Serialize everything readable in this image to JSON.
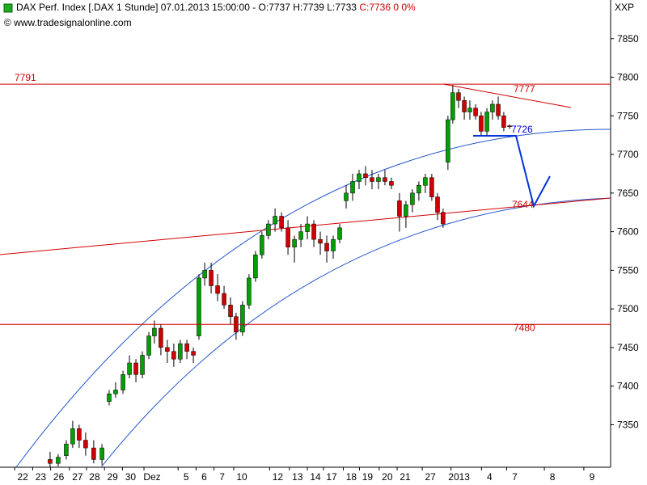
{
  "chart_data": {
    "type": "candlestick",
    "title": "DAX Perf. Index [.DAX  1 Stunde] 07.01.2013 15:00:00 - O:7737 H:7739 L:7733",
    "title_close": "C:7736 0 0%",
    "source": "© www.tradesignalonline.com",
    "corner_label": "XXP",
    "up_color": "#00a000",
    "down_color": "#d00000",
    "ylim": [
      7295,
      7900
    ],
    "yticks": [
      7350,
      7400,
      7450,
      7500,
      7550,
      7600,
      7650,
      7700,
      7750,
      7800,
      7850
    ],
    "xlim": [
      -0.27,
      33.74
    ],
    "xticks": [
      {
        "value": 1.0,
        "label": "22"
      },
      {
        "value": 2.0,
        "label": "23"
      },
      {
        "value": 3.0,
        "label": "26"
      },
      {
        "value": 4.05,
        "label": "27"
      },
      {
        "value": 5.0,
        "label": "28"
      },
      {
        "value": 6.0,
        "label": "29"
      },
      {
        "value": 7.0,
        "label": "30"
      },
      {
        "value": 8.2,
        "label": "Dez"
      },
      {
        "value": 10.1,
        "label": "5"
      },
      {
        "value": 11.1,
        "label": "6"
      },
      {
        "value": 12.1,
        "label": "7"
      },
      {
        "value": 13.2,
        "label": "10"
      },
      {
        "value": 15.2,
        "label": "12"
      },
      {
        "value": 16.3,
        "label": "13"
      },
      {
        "value": 17.3,
        "label": "14"
      },
      {
        "value": 18.2,
        "label": "17"
      },
      {
        "value": 19.3,
        "label": "18"
      },
      {
        "value": 20.2,
        "label": "19"
      },
      {
        "value": 21.3,
        "label": "20"
      },
      {
        "value": 22.3,
        "label": "21"
      },
      {
        "value": 23.7,
        "label": "27"
      },
      {
        "value": 25.3,
        "label": "2013"
      },
      {
        "value": 27.0,
        "label": "4"
      },
      {
        "value": 28.4,
        "label": "7"
      },
      {
        "value": 30.5,
        "label": "8"
      },
      {
        "value": 32.7,
        "label": "9"
      }
    ],
    "x": [
      2.52,
      2.97,
      3.42,
      3.78,
      4.14,
      4.5,
      4.95,
      5.41,
      5.81,
      6.17,
      6.58,
      6.94,
      7.3,
      7.66,
      8.02,
      8.33,
      8.69,
      9.05,
      9.41,
      9.77,
      10.14,
      10.5,
      10.81,
      11.13,
      11.49,
      11.85,
      12.21,
      12.57,
      12.88,
      13.24,
      13.6,
      13.96,
      14.32,
      14.68,
      15.05,
      15.41,
      15.77,
      16.13,
      16.49,
      16.85,
      17.21,
      17.57,
      17.93,
      18.29,
      18.65,
      19.01,
      19.37,
      19.73,
      20.09,
      20.45,
      20.81,
      21.17,
      21.53,
      21.98,
      22.34,
      22.7,
      23.06,
      23.42,
      23.78,
      24.1,
      24.41,
      24.68,
      24.95,
      25.27,
      25.59,
      25.9,
      26.22,
      26.53,
      26.85,
      27.16,
      27.48,
      27.79,
      28.11
    ],
    "open": [
      7305,
      7300,
      7310,
      7325,
      7345,
      7330,
      7320,
      7305,
      7380,
      7390,
      7395,
      7415,
      7430,
      7415,
      7440,
      7465,
      7475,
      7450,
      7445,
      7435,
      7455,
      7445,
      7465,
      7540,
      7550,
      7530,
      7520,
      7505,
      7490,
      7470,
      7505,
      7540,
      7570,
      7595,
      7610,
      7620,
      7605,
      7580,
      7590,
      7600,
      7610,
      7590,
      7585,
      7575,
      7590,
      7640,
      7650,
      7665,
      7675,
      7670,
      7665,
      7670,
      7665,
      7640,
      7620,
      7635,
      7650,
      7660,
      7670,
      7645,
      7625,
      7690,
      7745,
      7780,
      7770,
      7755,
      7760,
      7750,
      7730,
      7755,
      7765,
      7750,
      7737
    ],
    "high": [
      7315,
      7312,
      7330,
      7355,
      7350,
      7340,
      7330,
      7325,
      7395,
      7405,
      7420,
      7440,
      7435,
      7445,
      7470,
      7485,
      7480,
      7460,
      7455,
      7460,
      7460,
      7450,
      7545,
      7560,
      7560,
      7545,
      7530,
      7515,
      7495,
      7510,
      7545,
      7575,
      7600,
      7615,
      7630,
      7625,
      7615,
      7595,
      7610,
      7620,
      7615,
      7600,
      7595,
      7595,
      7610,
      7660,
      7675,
      7680,
      7685,
      7680,
      7675,
      7680,
      7670,
      7650,
      7640,
      7655,
      7665,
      7675,
      7675,
      7650,
      7630,
      7750,
      7790,
      7785,
      7775,
      7770,
      7765,
      7755,
      7760,
      7770,
      7775,
      7755,
      7739
    ],
    "low": [
      7295,
      7296,
      7305,
      7320,
      7320,
      7310,
      7300,
      7298,
      7375,
      7385,
      7390,
      7410,
      7405,
      7410,
      7435,
      7455,
      7440,
      7430,
      7425,
      7430,
      7435,
      7430,
      7460,
      7530,
      7520,
      7510,
      7500,
      7480,
      7460,
      7465,
      7500,
      7535,
      7565,
      7590,
      7600,
      7600,
      7570,
      7560,
      7580,
      7590,
      7580,
      7570,
      7560,
      7565,
      7585,
      7630,
      7640,
      7655,
      7660,
      7655,
      7655,
      7660,
      7655,
      7600,
      7605,
      7625,
      7640,
      7650,
      7640,
      7615,
      7605,
      7680,
      7740,
      7760,
      7745,
      7745,
      7745,
      7725,
      7725,
      7745,
      7745,
      7730,
      7733
    ],
    "close": [
      7300,
      7308,
      7325,
      7345,
      7330,
      7320,
      7305,
      7320,
      7390,
      7395,
      7415,
      7430,
      7415,
      7440,
      7465,
      7475,
      7450,
      7445,
      7435,
      7455,
      7445,
      7440,
      7540,
      7550,
      7530,
      7520,
      7505,
      7490,
      7470,
      7505,
      7540,
      7570,
      7595,
      7610,
      7620,
      7605,
      7580,
      7590,
      7600,
      7610,
      7590,
      7585,
      7575,
      7590,
      7605,
      7650,
      7665,
      7675,
      7670,
      7665,
      7670,
      7665,
      7660,
      7620,
      7635,
      7650,
      7660,
      7670,
      7645,
      7625,
      7610,
      7745,
      7780,
      7770,
      7755,
      7760,
      7750,
      7730,
      7755,
      7765,
      7750,
      7735,
      7736
    ],
    "hlines": [
      {
        "value": 7791,
        "label": "7791",
        "color": "#d00000",
        "side": "left"
      },
      {
        "value": 7480,
        "label": "7480",
        "color": "#d00000",
        "side": "right"
      }
    ],
    "annotations": [
      {
        "label": "7777",
        "color": "#d00000"
      },
      {
        "label": "7726",
        "color": "#0000cc"
      },
      {
        "label": "7644",
        "color": "#d00000"
      }
    ]
  }
}
